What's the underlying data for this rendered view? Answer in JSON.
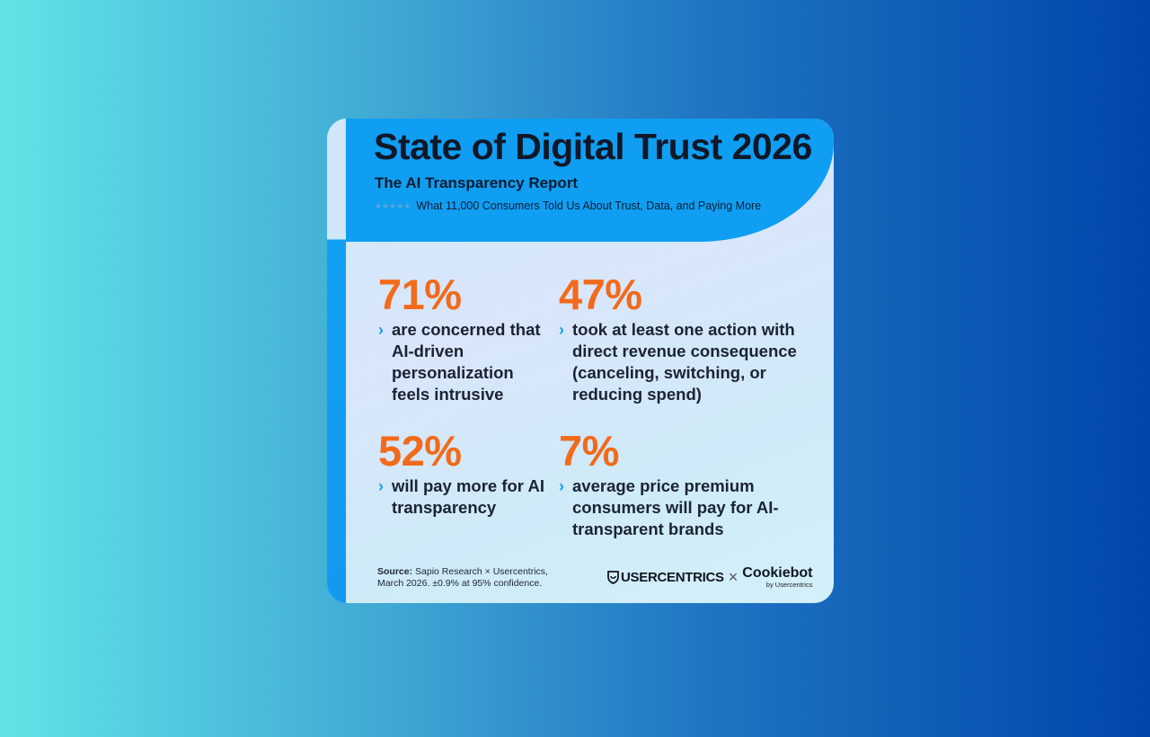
{
  "header": {
    "title": "State of Digital Trust 2026",
    "subtitle": "The AI Transparency Report",
    "stars": "★★★★★",
    "tagline": "What 11,000 Consumers Told Us About Trust, Data, and Paying More"
  },
  "stats": [
    {
      "percent": "71%",
      "description": "are concerned that AI-driven personalization feels intrusive"
    },
    {
      "percent": "47%",
      "description": "took at least one action with direct revenue consequence (canceling, switching, or reducing spend)"
    },
    {
      "percent": "52%",
      "description": "will pay more for AI transparency"
    },
    {
      "percent": "7%",
      "description": "average price premium consumers will pay for AI-transparent brands"
    }
  ],
  "footer": {
    "source_label": "Source:",
    "source_text": "Sapio Research × Usercentrics,",
    "source_line2": "March 2026. ±0.9% at 95% confidence.",
    "logo_usercentrics": "USERCENTRICS",
    "logo_times": "×",
    "logo_cookiebot": "Cookiebot",
    "logo_cookiebot_by": "by Usercentrics"
  },
  "colors": {
    "accent_orange": "#f26a1b",
    "header_blue": "#0f9ef2",
    "chevron_blue": "#139ef0"
  },
  "icons": {
    "chevron": "chevron-right-icon",
    "logo": "shield-icon"
  }
}
